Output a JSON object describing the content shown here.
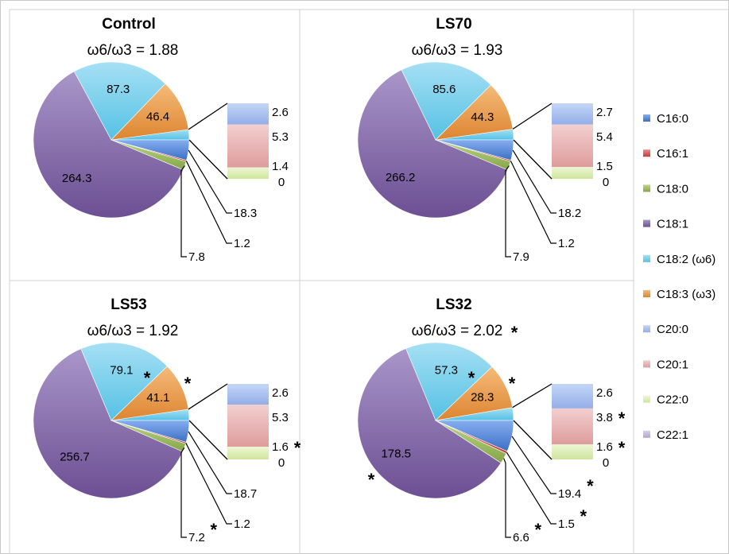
{
  "legend": [
    {
      "label": "C16:0",
      "color": "#4a7fcf"
    },
    {
      "label": "C16:1",
      "color": "#d9534f"
    },
    {
      "label": "C18:0",
      "color": "#9bbb59"
    },
    {
      "label": "C18:1",
      "color": "#8064a2"
    },
    {
      "label": "C18:2 (ω6)",
      "color": "#4bc4e6"
    },
    {
      "label": "C18:3 (ω3)",
      "color": "#e7903b"
    },
    {
      "label": "C20:0",
      "color": "#9db7ee"
    },
    {
      "label": "C20:1",
      "color": "#e6a5a5"
    },
    {
      "label": "C22:0",
      "color": "#d7eaa6"
    },
    {
      "label": "C22:1",
      "color": "#c0b4dc"
    }
  ],
  "chart_data": [
    {
      "type": "pie",
      "title": "Control",
      "subtitle": "ω6/ω3 = 1.88",
      "categories": [
        "C16:0",
        "C16:1",
        "C18:0",
        "C18:1",
        "C18:2 (ω6)",
        "C18:3 (ω3)",
        "C20:0",
        "C20:1",
        "C22:0",
        "C22:1"
      ],
      "values": [
        18.3,
        1.2,
        7.8,
        264.3,
        87.3,
        46.4,
        2.6,
        5.3,
        1.4,
        0
      ],
      "labels": [
        "18.3",
        "1.2",
        "7.8",
        "264.3",
        "87.3",
        "46.4",
        "2.6",
        "5.3",
        "1.4",
        "0"
      ],
      "significant": [
        false,
        false,
        false,
        false,
        false,
        false,
        false,
        false,
        false,
        false
      ]
    },
    {
      "type": "pie",
      "title": "LS70",
      "subtitle": "ω6/ω3 = 1.93",
      "categories": [
        "C16:0",
        "C16:1",
        "C18:0",
        "C18:1",
        "C18:2 (ω6)",
        "C18:3 (ω3)",
        "C20:0",
        "C20:1",
        "C22:0",
        "C22:1"
      ],
      "values": [
        18.2,
        1.2,
        7.9,
        266.2,
        85.6,
        44.3,
        2.7,
        5.4,
        1.5,
        0
      ],
      "labels": [
        "18.2",
        "1.2",
        "7.9",
        "266.2",
        "85.6",
        "44.3",
        "2.7",
        "5.4",
        "1.5",
        "0"
      ],
      "significant": [
        false,
        false,
        false,
        false,
        false,
        false,
        false,
        false,
        false,
        false
      ]
    },
    {
      "type": "pie",
      "title": "LS53",
      "subtitle": "ω6/ω3 = 1.92",
      "categories": [
        "C16:0",
        "C16:1",
        "C18:0",
        "C18:1",
        "C18:2 (ω6)",
        "C18:3 (ω3)",
        "C20:0",
        "C20:1",
        "C22:0",
        "C22:1"
      ],
      "values": [
        18.7,
        1.2,
        7.2,
        256.7,
        79.1,
        41.1,
        2.6,
        5.3,
        1.6,
        0
      ],
      "labels": [
        "18.7",
        "1.2",
        "7.2",
        "256.7",
        "79.1",
        "41.1",
        "2.6",
        "5.3",
        "1.6",
        "0"
      ],
      "significant": [
        false,
        false,
        true,
        false,
        true,
        true,
        false,
        false,
        true,
        false
      ]
    },
    {
      "type": "pie",
      "title": "LS32",
      "subtitle": "ω6/ω3 = 2.02",
      "subtitle_significant": true,
      "categories": [
        "C16:0",
        "C16:1",
        "C18:0",
        "C18:1",
        "C18:2 (ω6)",
        "C18:3 (ω3)",
        "C20:0",
        "C20:1",
        "C22:0",
        "C22:1"
      ],
      "values": [
        19.4,
        1.5,
        6.6,
        178.5,
        57.3,
        28.3,
        2.6,
        3.8,
        1.6,
        0
      ],
      "labels": [
        "19.4",
        "1.5",
        "6.6",
        "178.5",
        "57.3",
        "28.3",
        "2.6",
        "3.8",
        "1.6",
        "0"
      ],
      "significant": [
        true,
        true,
        true,
        true,
        true,
        true,
        false,
        true,
        true,
        false
      ]
    }
  ]
}
